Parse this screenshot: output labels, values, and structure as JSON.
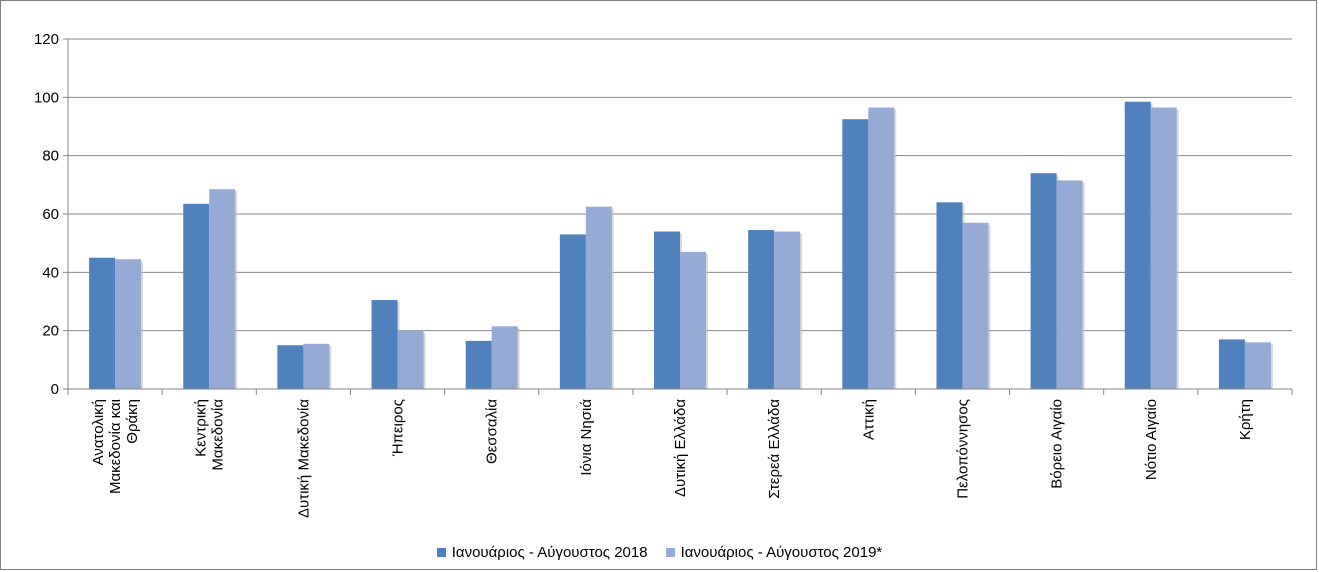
{
  "chart_data": {
    "type": "bar",
    "title": "",
    "xlabel": "",
    "ylabel": "",
    "ylim": [
      0,
      120
    ],
    "yticks": [
      0,
      20,
      40,
      60,
      80,
      100,
      120
    ],
    "grid": true,
    "legend_position": "bottom",
    "categories": [
      [
        "Ανατολική",
        "Μακεδονία και",
        "Θράκη"
      ],
      [
        "Κεντρική",
        "Μακεδονία"
      ],
      [
        "Δυτική Μακεδονία"
      ],
      [
        "Ήπειρος"
      ],
      [
        "Θεσσαλία"
      ],
      [
        "Ιόνια Νησιά"
      ],
      [
        "Δυτική Ελλάδα"
      ],
      [
        "Στερεά Ελλάδα"
      ],
      [
        "Αττική"
      ],
      [
        "Πελοπόννησος"
      ],
      [
        "Βόρειο Αιγαίο"
      ],
      [
        "Νότιο Αιγαίο"
      ],
      [
        "Κρήτη"
      ]
    ],
    "series": [
      {
        "name": "Ιανουάριος - Αύγουστος 2018",
        "color": "#4f81bd",
        "values": [
          45,
          63.5,
          15,
          30.5,
          16.5,
          53,
          54,
          54.5,
          92.5,
          64,
          74,
          98.5,
          17
        ]
      },
      {
        "name": "Ιανουάριος - Αύγουστος 2019*",
        "color": "#95abd6",
        "values": [
          44.5,
          68.5,
          15.5,
          20,
          21.5,
          62.5,
          47,
          54,
          96.5,
          57,
          71.5,
          96.5,
          16
        ]
      }
    ]
  }
}
